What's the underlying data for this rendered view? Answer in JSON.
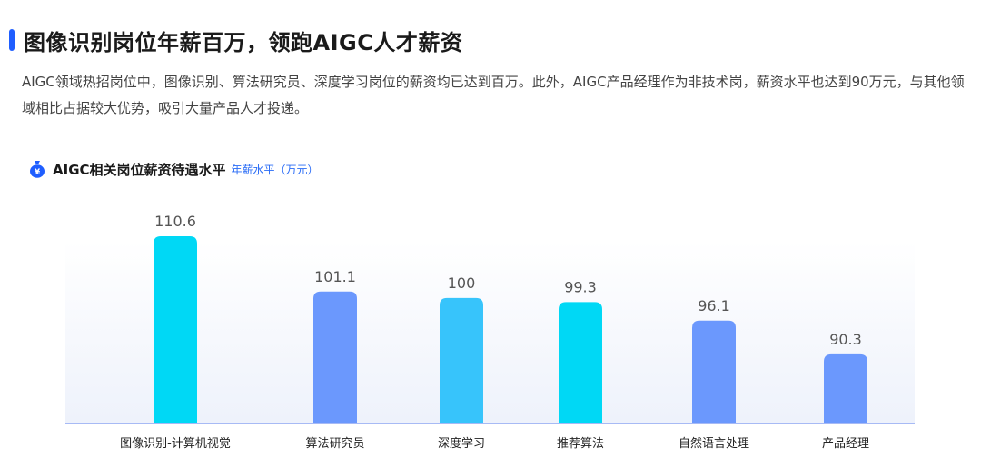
{
  "header": {
    "title": "图像识别岗位年薪百万，领跑AIGC人才薪资",
    "description": "AIGC领域热招岗位中，图像识别、算法研究员、深度学习岗位的薪资均已达到百万。此外，AIGC产品经理作为非技术岗，薪资水平也达到90万元，与其他领域相比占据较大优势，吸引大量产品人才投递。"
  },
  "chart_header": {
    "icon": "money-bag-icon",
    "title": "AIGC相关岗位薪资待遇水平",
    "unit": "年薪水平（万元）"
  },
  "colors": {
    "accent": "#1f5eff",
    "cyan": "#00d8f5",
    "blue": "#6b98fd",
    "light_cyan": "#37c4fb",
    "axis": "#8aa3f2"
  },
  "chart_data": {
    "type": "bar",
    "title": "AIGC相关岗位薪资待遇水平",
    "ylabel": "年薪水平（万元）",
    "xlabel": "",
    "categories": [
      "图像识别-计算机视觉",
      "算法研究员",
      "深度学习",
      "推荐算法",
      "自然语言处理",
      "产品经理"
    ],
    "values": [
      110.6,
      101.1,
      100,
      99.3,
      96.1,
      90.3
    ],
    "labels": [
      "110.6",
      "101.1",
      "100",
      "99.3",
      "96.1",
      "90.3"
    ],
    "bar_colors": [
      "#00d8f5",
      "#6b98fd",
      "#37c4fb",
      "#00d8f5",
      "#6b98fd",
      "#6b98fd"
    ],
    "grid": false,
    "legend": "none"
  }
}
